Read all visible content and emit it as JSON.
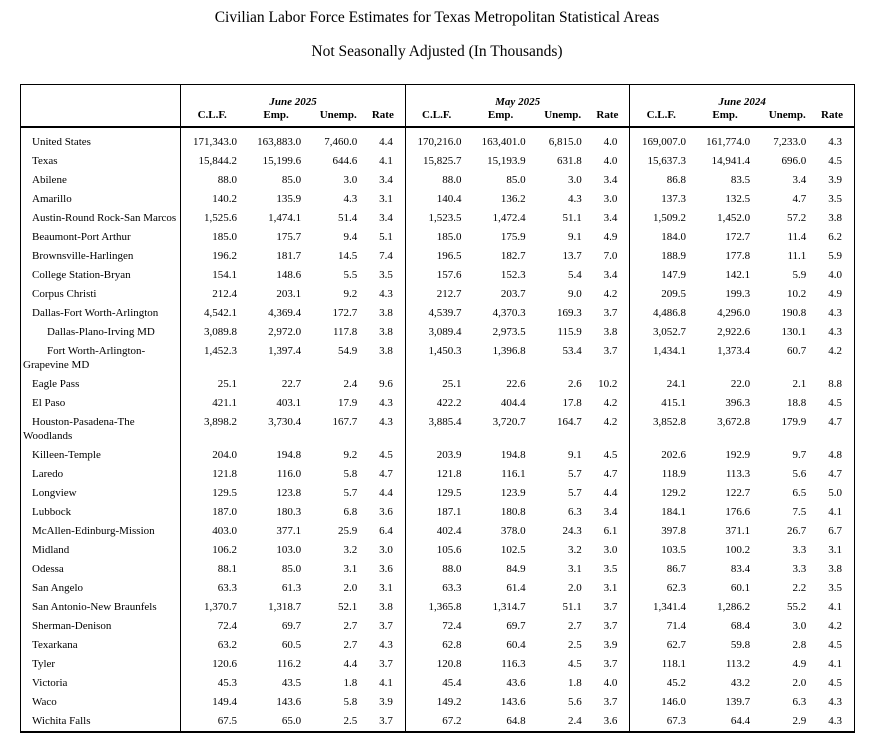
{
  "title": {
    "line1": "Civilian Labor Force Estimates for Texas Metropolitan Statistical Areas",
    "line2": "Not Seasonally Adjusted (In Thousands)"
  },
  "table": {
    "groups": [
      {
        "label": "June 2025"
      },
      {
        "label": "May 2025"
      },
      {
        "label": "June 2024"
      }
    ],
    "sub_headers": [
      "C.L.F.",
      "Emp.",
      "Unemp.",
      "Rate"
    ],
    "rows": [
      {
        "label": "United States",
        "indent": "normal",
        "values": [
          [
            "171,343.0",
            "163,883.0",
            "7,460.0",
            "4.4"
          ],
          [
            "170,216.0",
            "163,401.0",
            "6,815.0",
            "4.0"
          ],
          [
            "169,007.0",
            "161,774.0",
            "7,233.0",
            "4.3"
          ]
        ]
      },
      {
        "label": "Texas",
        "indent": "normal",
        "values": [
          [
            "15,844.2",
            "15,199.6",
            "644.6",
            "4.1"
          ],
          [
            "15,825.7",
            "15,193.9",
            "631.8",
            "4.0"
          ],
          [
            "15,637.3",
            "14,941.4",
            "696.0",
            "4.5"
          ]
        ]
      },
      {
        "label": "Abilene",
        "indent": "normal",
        "values": [
          [
            "88.0",
            "85.0",
            "3.0",
            "3.4"
          ],
          [
            "88.0",
            "85.0",
            "3.0",
            "3.4"
          ],
          [
            "86.8",
            "83.5",
            "3.4",
            "3.9"
          ]
        ]
      },
      {
        "label": "Amarillo",
        "indent": "normal",
        "values": [
          [
            "140.2",
            "135.9",
            "4.3",
            "3.1"
          ],
          [
            "140.4",
            "136.2",
            "4.3",
            "3.0"
          ],
          [
            "137.3",
            "132.5",
            "4.7",
            "3.5"
          ]
        ]
      },
      {
        "label": "Austin-Round Rock-San Marcos",
        "indent": "normal",
        "values": [
          [
            "1,525.6",
            "1,474.1",
            "51.4",
            "3.4"
          ],
          [
            "1,523.5",
            "1,472.4",
            "51.1",
            "3.4"
          ],
          [
            "1,509.2",
            "1,452.0",
            "57.2",
            "3.8"
          ]
        ]
      },
      {
        "label": "Beaumont-Port Arthur",
        "indent": "normal",
        "values": [
          [
            "185.0",
            "175.7",
            "9.4",
            "5.1"
          ],
          [
            "185.0",
            "175.9",
            "9.1",
            "4.9"
          ],
          [
            "184.0",
            "172.7",
            "11.4",
            "6.2"
          ]
        ]
      },
      {
        "label": "Brownsville-Harlingen",
        "indent": "normal",
        "values": [
          [
            "196.2",
            "181.7",
            "14.5",
            "7.4"
          ],
          [
            "196.5",
            "182.7",
            "13.7",
            "7.0"
          ],
          [
            "188.9",
            "177.8",
            "11.1",
            "5.9"
          ]
        ]
      },
      {
        "label": "College Station-Bryan",
        "indent": "normal",
        "values": [
          [
            "154.1",
            "148.6",
            "5.5",
            "3.5"
          ],
          [
            "157.6",
            "152.3",
            "5.4",
            "3.4"
          ],
          [
            "147.9",
            "142.1",
            "5.9",
            "4.0"
          ]
        ]
      },
      {
        "label": "Corpus Christi",
        "indent": "normal",
        "values": [
          [
            "212.4",
            "203.1",
            "9.2",
            "4.3"
          ],
          [
            "212.7",
            "203.7",
            "9.0",
            "4.2"
          ],
          [
            "209.5",
            "199.3",
            "10.2",
            "4.9"
          ]
        ]
      },
      {
        "label": "Dallas-Fort Worth-Arlington",
        "indent": "normal",
        "values": [
          [
            "4,542.1",
            "4,369.4",
            "172.7",
            "3.8"
          ],
          [
            "4,539.7",
            "4,370.3",
            "169.3",
            "3.7"
          ],
          [
            "4,486.8",
            "4,296.0",
            "190.8",
            "4.3"
          ]
        ]
      },
      {
        "label": "Dallas-Plano-Irving MD",
        "indent": "sub",
        "values": [
          [
            "3,089.8",
            "2,972.0",
            "117.8",
            "3.8"
          ],
          [
            "3,089.4",
            "2,973.5",
            "115.9",
            "3.8"
          ],
          [
            "3,052.7",
            "2,922.6",
            "130.1",
            "4.3"
          ]
        ]
      },
      {
        "label": "Fort Worth-Arlington-Grapevine MD",
        "indent": "sub",
        "values": [
          [
            "1,452.3",
            "1,397.4",
            "54.9",
            "3.8"
          ],
          [
            "1,450.3",
            "1,396.8",
            "53.4",
            "3.7"
          ],
          [
            "1,434.1",
            "1,373.4",
            "60.7",
            "4.2"
          ]
        ]
      },
      {
        "label": "Eagle Pass",
        "indent": "normal",
        "values": [
          [
            "25.1",
            "22.7",
            "2.4",
            "9.6"
          ],
          [
            "25.1",
            "22.6",
            "2.6",
            "10.2"
          ],
          [
            "24.1",
            "22.0",
            "2.1",
            "8.8"
          ]
        ]
      },
      {
        "label": "El Paso",
        "indent": "normal",
        "values": [
          [
            "421.1",
            "403.1",
            "17.9",
            "4.3"
          ],
          [
            "422.2",
            "404.4",
            "17.8",
            "4.2"
          ],
          [
            "415.1",
            "396.3",
            "18.8",
            "4.5"
          ]
        ]
      },
      {
        "label": "Houston-Pasadena-The Woodlands",
        "indent": "normal",
        "values": [
          [
            "3,898.2",
            "3,730.4",
            "167.7",
            "4.3"
          ],
          [
            "3,885.4",
            "3,720.7",
            "164.7",
            "4.2"
          ],
          [
            "3,852.8",
            "3,672.8",
            "179.9",
            "4.7"
          ]
        ]
      },
      {
        "label": "Killeen-Temple",
        "indent": "normal",
        "values": [
          [
            "204.0",
            "194.8",
            "9.2",
            "4.5"
          ],
          [
            "203.9",
            "194.8",
            "9.1",
            "4.5"
          ],
          [
            "202.6",
            "192.9",
            "9.7",
            "4.8"
          ]
        ]
      },
      {
        "label": "Laredo",
        "indent": "normal",
        "values": [
          [
            "121.8",
            "116.0",
            "5.8",
            "4.7"
          ],
          [
            "121.8",
            "116.1",
            "5.7",
            "4.7"
          ],
          [
            "118.9",
            "113.3",
            "5.6",
            "4.7"
          ]
        ]
      },
      {
        "label": "Longview",
        "indent": "normal",
        "values": [
          [
            "129.5",
            "123.8",
            "5.7",
            "4.4"
          ],
          [
            "129.5",
            "123.9",
            "5.7",
            "4.4"
          ],
          [
            "129.2",
            "122.7",
            "6.5",
            "5.0"
          ]
        ]
      },
      {
        "label": "Lubbock",
        "indent": "normal",
        "values": [
          [
            "187.0",
            "180.3",
            "6.8",
            "3.6"
          ],
          [
            "187.1",
            "180.8",
            "6.3",
            "3.4"
          ],
          [
            "184.1",
            "176.6",
            "7.5",
            "4.1"
          ]
        ]
      },
      {
        "label": "McAllen-Edinburg-Mission",
        "indent": "normal",
        "values": [
          [
            "403.0",
            "377.1",
            "25.9",
            "6.4"
          ],
          [
            "402.4",
            "378.0",
            "24.3",
            "6.1"
          ],
          [
            "397.8",
            "371.1",
            "26.7",
            "6.7"
          ]
        ]
      },
      {
        "label": "Midland",
        "indent": "normal",
        "values": [
          [
            "106.2",
            "103.0",
            "3.2",
            "3.0"
          ],
          [
            "105.6",
            "102.5",
            "3.2",
            "3.0"
          ],
          [
            "103.5",
            "100.2",
            "3.3",
            "3.1"
          ]
        ]
      },
      {
        "label": "Odessa",
        "indent": "normal",
        "values": [
          [
            "88.1",
            "85.0",
            "3.1",
            "3.6"
          ],
          [
            "88.0",
            "84.9",
            "3.1",
            "3.5"
          ],
          [
            "86.7",
            "83.4",
            "3.3",
            "3.8"
          ]
        ]
      },
      {
        "label": "San Angelo",
        "indent": "normal",
        "values": [
          [
            "63.3",
            "61.3",
            "2.0",
            "3.1"
          ],
          [
            "63.3",
            "61.4",
            "2.0",
            "3.1"
          ],
          [
            "62.3",
            "60.1",
            "2.2",
            "3.5"
          ]
        ]
      },
      {
        "label": "San Antonio-New Braunfels",
        "indent": "normal",
        "values": [
          [
            "1,370.7",
            "1,318.7",
            "52.1",
            "3.8"
          ],
          [
            "1,365.8",
            "1,314.7",
            "51.1",
            "3.7"
          ],
          [
            "1,341.4",
            "1,286.2",
            "55.2",
            "4.1"
          ]
        ]
      },
      {
        "label": "Sherman-Denison",
        "indent": "normal",
        "values": [
          [
            "72.4",
            "69.7",
            "2.7",
            "3.7"
          ],
          [
            "72.4",
            "69.7",
            "2.7",
            "3.7"
          ],
          [
            "71.4",
            "68.4",
            "3.0",
            "4.2"
          ]
        ]
      },
      {
        "label": "Texarkana",
        "indent": "normal",
        "values": [
          [
            "63.2",
            "60.5",
            "2.7",
            "4.3"
          ],
          [
            "62.8",
            "60.4",
            "2.5",
            "3.9"
          ],
          [
            "62.7",
            "59.8",
            "2.8",
            "4.5"
          ]
        ]
      },
      {
        "label": "Tyler",
        "indent": "normal",
        "values": [
          [
            "120.6",
            "116.2",
            "4.4",
            "3.7"
          ],
          [
            "120.8",
            "116.3",
            "4.5",
            "3.7"
          ],
          [
            "118.1",
            "113.2",
            "4.9",
            "4.1"
          ]
        ]
      },
      {
        "label": "Victoria",
        "indent": "normal",
        "values": [
          [
            "45.3",
            "43.5",
            "1.8",
            "4.1"
          ],
          [
            "45.4",
            "43.6",
            "1.8",
            "4.0"
          ],
          [
            "45.2",
            "43.2",
            "2.0",
            "4.5"
          ]
        ]
      },
      {
        "label": "Waco",
        "indent": "normal",
        "values": [
          [
            "149.4",
            "143.6",
            "5.8",
            "3.9"
          ],
          [
            "149.2",
            "143.6",
            "5.6",
            "3.7"
          ],
          [
            "146.0",
            "139.7",
            "6.3",
            "4.3"
          ]
        ]
      },
      {
        "label": "Wichita Falls",
        "indent": "normal",
        "values": [
          [
            "67.5",
            "65.0",
            "2.5",
            "3.7"
          ],
          [
            "67.2",
            "64.8",
            "2.4",
            "3.6"
          ],
          [
            "67.3",
            "64.4",
            "2.9",
            "4.3"
          ]
        ]
      }
    ]
  }
}
